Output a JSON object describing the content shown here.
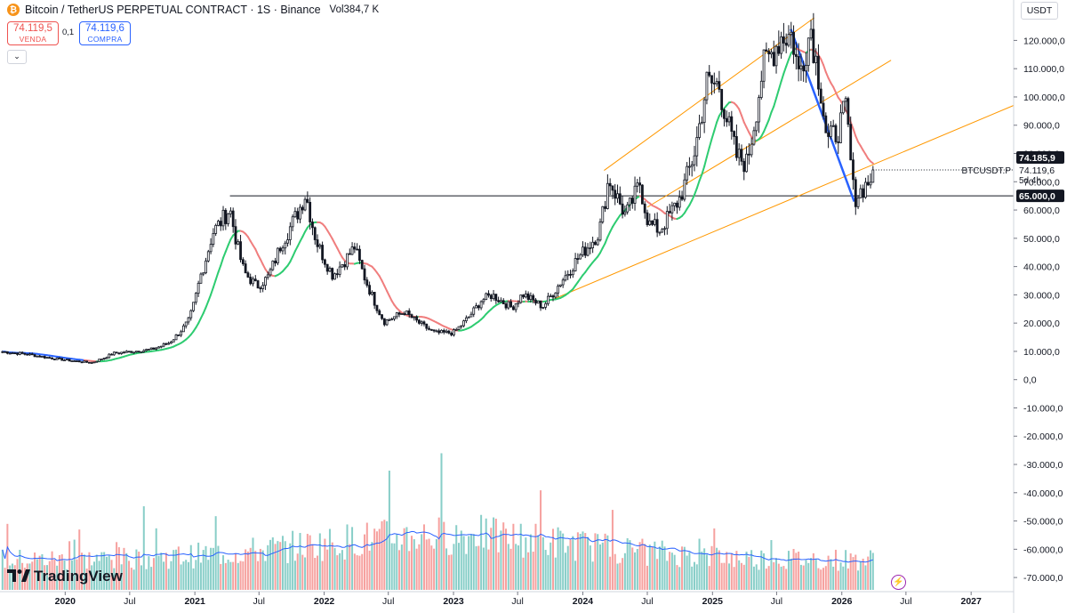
{
  "header": {
    "symbol_title": "Bitcoin / TetherUS PERPETUAL CONTRACT · 1S · Binance",
    "volume_label": "Vol",
    "volume_value": "384,7 K",
    "sell_price": "74.119,5",
    "sell_label": "VENDA",
    "spread": "0,1",
    "buy_price": "74.119,6",
    "buy_label": "COMPRA",
    "currency": "USDT"
  },
  "branding": {
    "logo_text": "TradingView"
  },
  "icons": {
    "coin": "bitcoin-icon",
    "collapse": "chevron-down-icon",
    "logo": "tradingview-logo-icon",
    "replay": "lightning-icon"
  },
  "colors": {
    "up": "#ffffff",
    "down": "#131722",
    "ma_up": "#2ecc71",
    "ma_down": "#f07e7e",
    "ma_neutral": "#2962ff",
    "channel": "#ff9800",
    "downtrend": "#2962ff",
    "vol_up": "#26a69a",
    "vol_down": "#ef5350",
    "vol_ma": "#2962ff"
  },
  "chart_data": {
    "type": "candlestick",
    "symbol": "BTCUSDT.P",
    "ylim": [
      -75000,
      128000
    ],
    "y_ticks": [
      -70000,
      -60000,
      -50000,
      -40000,
      -30000,
      -20000,
      -10000,
      0,
      10000,
      20000,
      30000,
      40000,
      50000,
      60000,
      70000,
      80000,
      90000,
      100000,
      110000,
      120000
    ],
    "y_tick_labels": [
      "-70.000,0",
      "-60.000,0",
      "-50.000,0",
      "-40.000,0",
      "-30.000,0",
      "-20.000,0",
      "-10.000,0",
      "0,0",
      "10.000,0",
      "20.000,0",
      "30.000,0",
      "40.000,0",
      "50.000,0",
      "60.000,0",
      "70.000,0",
      "80.000,0",
      "90.000,0",
      "100.000,0",
      "110.000,0",
      "120.000,0"
    ],
    "x_ticks": [
      "2020-01-01",
      "2020-07-01",
      "2021-01-01",
      "2021-07-01",
      "2022-01-01",
      "2022-07-01",
      "2023-01-01",
      "2023-07-01",
      "2024-01-01",
      "2024-07-01",
      "2025-01-01",
      "2025-07-01",
      "2026-01-01",
      "2026-07-01",
      "2027-01-01"
    ],
    "x_tick_labels": [
      "2020",
      "Jul",
      "2021",
      "Jul",
      "2022",
      "Jul",
      "2023",
      "Jul",
      "2024",
      "Jul",
      "2025",
      "Jul",
      "2026",
      "Jul",
      "2027"
    ],
    "x_range": [
      "2019-07-01",
      "2027-05-01"
    ],
    "price_close_path": [
      [
        "2019-07-01",
        10000
      ],
      [
        "2019-09-15",
        9000
      ],
      [
        "2019-12-15",
        7200
      ],
      [
        "2020-03-15",
        6000
      ],
      [
        "2020-05-15",
        9300
      ],
      [
        "2020-09-01",
        10700
      ],
      [
        "2020-10-20",
        13000
      ],
      [
        "2020-12-15",
        21000
      ],
      [
        "2021-01-15",
        36000
      ],
      [
        "2021-02-20",
        52000
      ],
      [
        "2021-04-10",
        60500
      ],
      [
        "2021-05-20",
        38000
      ],
      [
        "2021-06-25",
        33000
      ],
      [
        "2021-07-25",
        36000
      ],
      [
        "2021-09-01",
        48000
      ],
      [
        "2021-10-25",
        61000
      ],
      [
        "2021-11-10",
        66000
      ],
      [
        "2021-12-10",
        49000
      ],
      [
        "2022-01-25",
        37000
      ],
      [
        "2022-03-28",
        47000
      ],
      [
        "2022-05-15",
        30000
      ],
      [
        "2022-06-20",
        20500
      ],
      [
        "2022-08-15",
        24000
      ],
      [
        "2022-11-10",
        16500
      ],
      [
        "2022-12-31",
        16600
      ],
      [
        "2023-03-20",
        28000
      ],
      [
        "2023-04-20",
        30000
      ],
      [
        "2023-06-15",
        25500
      ],
      [
        "2023-07-15",
        30300
      ],
      [
        "2023-09-10",
        25900
      ],
      [
        "2023-10-30",
        34500
      ],
      [
        "2023-12-15",
        42500
      ],
      [
        "2024-02-15",
        52000
      ],
      [
        "2024-03-14",
        71500
      ],
      [
        "2024-05-01",
        58000
      ],
      [
        "2024-06-10",
        69500
      ],
      [
        "2024-07-05",
        55000
      ],
      [
        "2024-08-05",
        53000
      ],
      [
        "2024-09-30",
        64000
      ],
      [
        "2024-11-10",
        80000
      ],
      [
        "2024-12-15",
        105000
      ],
      [
        "2025-01-20",
        104000
      ],
      [
        "2025-03-10",
        79000
      ],
      [
        "2025-04-07",
        76500
      ],
      [
        "2025-05-22",
        110000
      ],
      [
        "2025-07-14",
        121500
      ],
      [
        "2025-08-14",
        122000
      ],
      [
        "2025-09-01",
        108000
      ],
      [
        "2025-10-06",
        124500
      ],
      [
        "2025-11-05",
        101000
      ],
      [
        "2025-11-21",
        84000
      ],
      [
        "2025-12-20",
        88000
      ],
      [
        "2026-01-14",
        96500
      ],
      [
        "2026-02-05",
        64000
      ],
      [
        "2026-02-25",
        67000
      ],
      [
        "2026-03-20",
        70500
      ],
      [
        "2026-04-01",
        74119.6
      ]
    ],
    "volume_pane": {
      "vol_ma": "shown"
    },
    "moving_average": "shown",
    "horizontal_line": {
      "price": 65000,
      "label": "65.000,0"
    },
    "last_price_label": "74.185,9",
    "last_price": 74185.9,
    "symbol_label": "BTCUSDT.P",
    "current_price_label": "74.119,6",
    "countdown_label": "5d 4h",
    "trendlines": [
      {
        "name": "channel-upper",
        "from": [
          "2024-03-01",
          74000
        ],
        "to": [
          "2025-10-15",
          128000
        ]
      },
      {
        "name": "channel-middle",
        "from": [
          "2024-07-01",
          61000
        ],
        "to": [
          "2026-05-20",
          113000
        ]
      },
      {
        "name": "channel-lower",
        "from": [
          "2023-10-01",
          28000
        ],
        "to": [
          "2027-05-01",
          97000
        ]
      },
      {
        "name": "downtrend",
        "from": [
          "2025-08-10",
          124000
        ],
        "to": [
          "2026-02-05",
          63000
        ]
      }
    ]
  }
}
